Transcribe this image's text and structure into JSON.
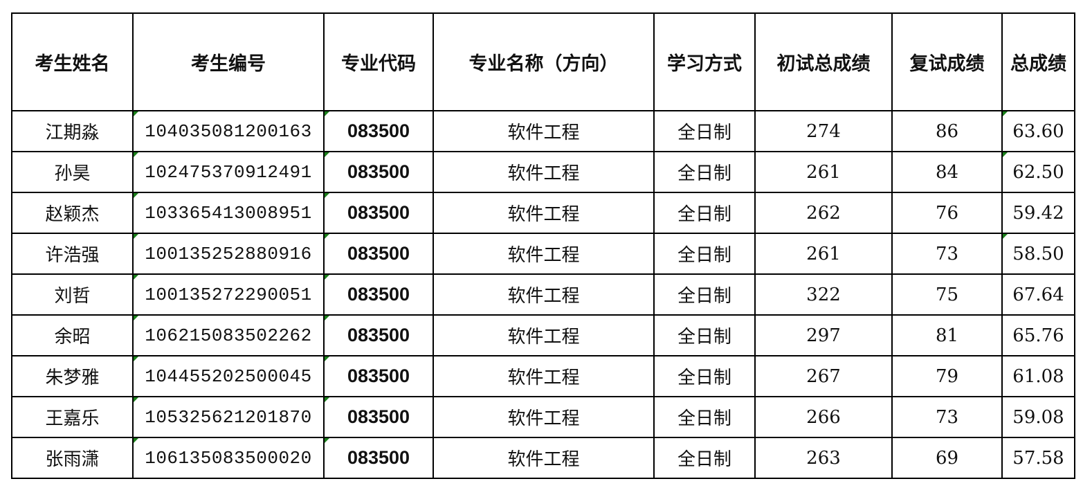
{
  "headers": [
    "考生姓名",
    "考生编号",
    "专业代码",
    "专业名称（方向）",
    "学习方式",
    "初试总成绩",
    "复试成绩",
    "总成绩"
  ],
  "rows": [
    {
      "name": "江期淼",
      "id": "104035081200163",
      "code": "083500",
      "major": "软件工程",
      "mode": "全日制",
      "initial": "274",
      "retest": "86",
      "total": "63.60",
      "total_flag": true
    },
    {
      "name": "孙昊",
      "id": "102475370912491",
      "code": "083500",
      "major": "软件工程",
      "mode": "全日制",
      "initial": "261",
      "retest": "84",
      "total": "62.50",
      "total_flag": true
    },
    {
      "name": "赵颖杰",
      "id": "103365413008951",
      "code": "083500",
      "major": "软件工程",
      "mode": "全日制",
      "initial": "262",
      "retest": "76",
      "total": "59.42",
      "total_flag": false
    },
    {
      "name": "许浩强",
      "id": "100135252880916",
      "code": "083500",
      "major": "软件工程",
      "mode": "全日制",
      "initial": "261",
      "retest": "73",
      "total": "58.50",
      "total_flag": true
    },
    {
      "name": "刘哲",
      "id": "100135272290051",
      "code": "083500",
      "major": "软件工程",
      "mode": "全日制",
      "initial": "322",
      "retest": "75",
      "total": "67.64",
      "total_flag": false
    },
    {
      "name": "余昭",
      "id": "106215083502262",
      "code": "083500",
      "major": "软件工程",
      "mode": "全日制",
      "initial": "297",
      "retest": "81",
      "total": "65.76",
      "total_flag": false
    },
    {
      "name": "朱梦雅",
      "id": "104455202500045",
      "code": "083500",
      "major": "软件工程",
      "mode": "全日制",
      "initial": "267",
      "retest": "79",
      "total": "61.08",
      "total_flag": false
    },
    {
      "name": "王嘉乐",
      "id": "105325621201870",
      "code": "083500",
      "major": "软件工程",
      "mode": "全日制",
      "initial": "266",
      "retest": "73",
      "total": "59.08",
      "total_flag": false
    },
    {
      "name": "张雨潇",
      "id": "106135083500020",
      "code": "083500",
      "major": "软件工程",
      "mode": "全日制",
      "initial": "263",
      "retest": "69",
      "total": "57.58",
      "total_flag": false
    }
  ],
  "colors": {
    "border": "#000000",
    "cell_marker": "#1a7f1a"
  }
}
